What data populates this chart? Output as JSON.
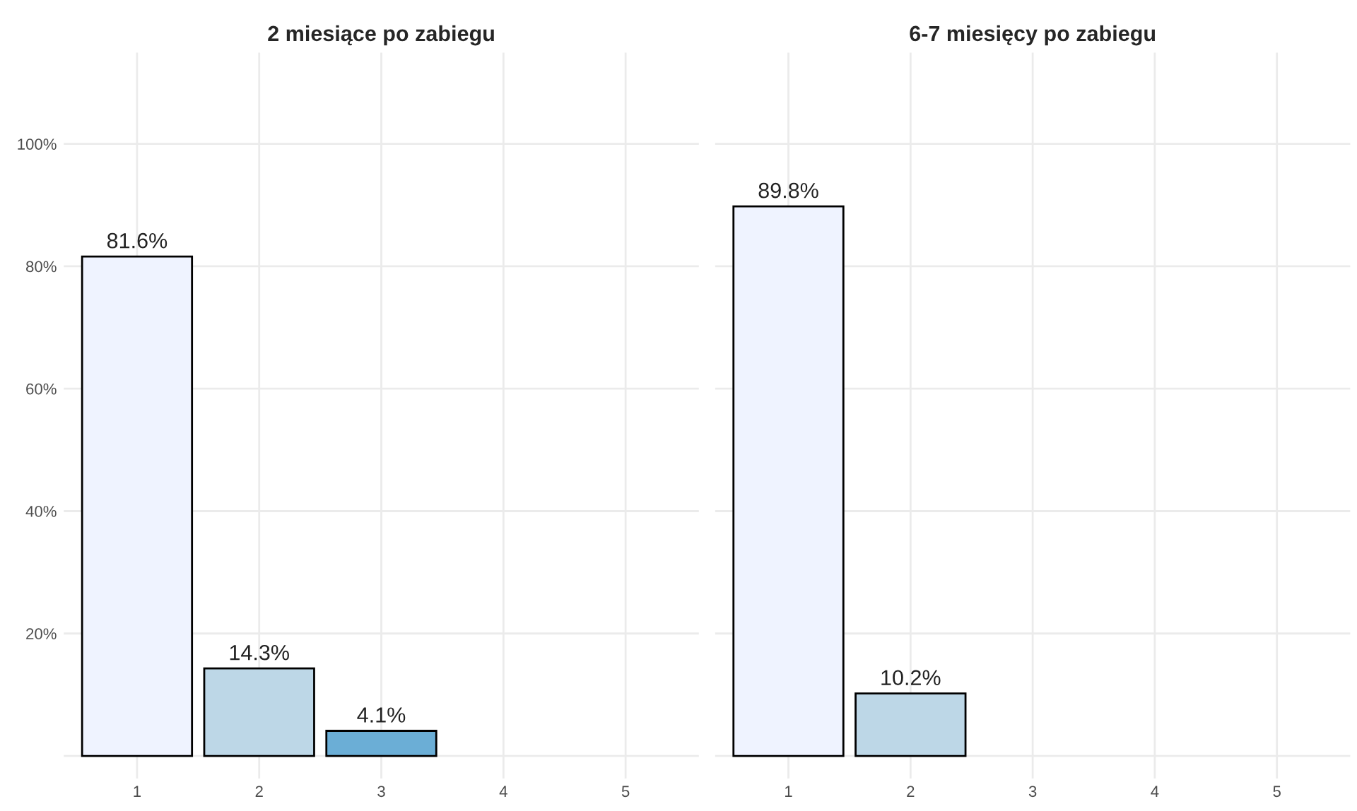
{
  "chart_data": [
    {
      "type": "bar",
      "title": "2 miesiące po zabiegu",
      "categories": [
        "1",
        "2",
        "3",
        "4",
        "5"
      ],
      "values": [
        81.6,
        14.3,
        4.1,
        null,
        null
      ],
      "colors": [
        "#eff3ff",
        "#bdd7e7",
        "#6baed6",
        null,
        null
      ],
      "value_labels": [
        "81.6%",
        "14.3%",
        "4.1%",
        null,
        null
      ],
      "ylim": [
        -3.7,
        114.9
      ],
      "yticks": [
        {
          "value": 0,
          "label": null
        },
        {
          "value": 20,
          "label": "20%"
        },
        {
          "value": 40,
          "label": "40%"
        },
        {
          "value": 60,
          "label": "60%"
        },
        {
          "value": 80,
          "label": "80%"
        },
        {
          "value": 100,
          "label": "100%"
        }
      ],
      "grid": true
    },
    {
      "type": "bar",
      "title": "6-7 miesięcy po zabiegu",
      "categories": [
        "1",
        "2",
        "3",
        "4",
        "5"
      ],
      "values": [
        89.8,
        10.2,
        null,
        null,
        null
      ],
      "colors": [
        "#eff3ff",
        "#bdd7e7",
        null,
        null,
        null
      ],
      "value_labels": [
        "89.8%",
        "10.2%",
        null,
        null,
        null
      ],
      "ylim": [
        -3.7,
        114.9
      ],
      "yticks": [
        {
          "value": 0,
          "label": null
        },
        {
          "value": 20,
          "label": null
        },
        {
          "value": 40,
          "label": null
        },
        {
          "value": 60,
          "label": null
        },
        {
          "value": 80,
          "label": null
        },
        {
          "value": 100,
          "label": null
        }
      ],
      "grid": true,
      "tick_labels": "x"
    }
  ]
}
